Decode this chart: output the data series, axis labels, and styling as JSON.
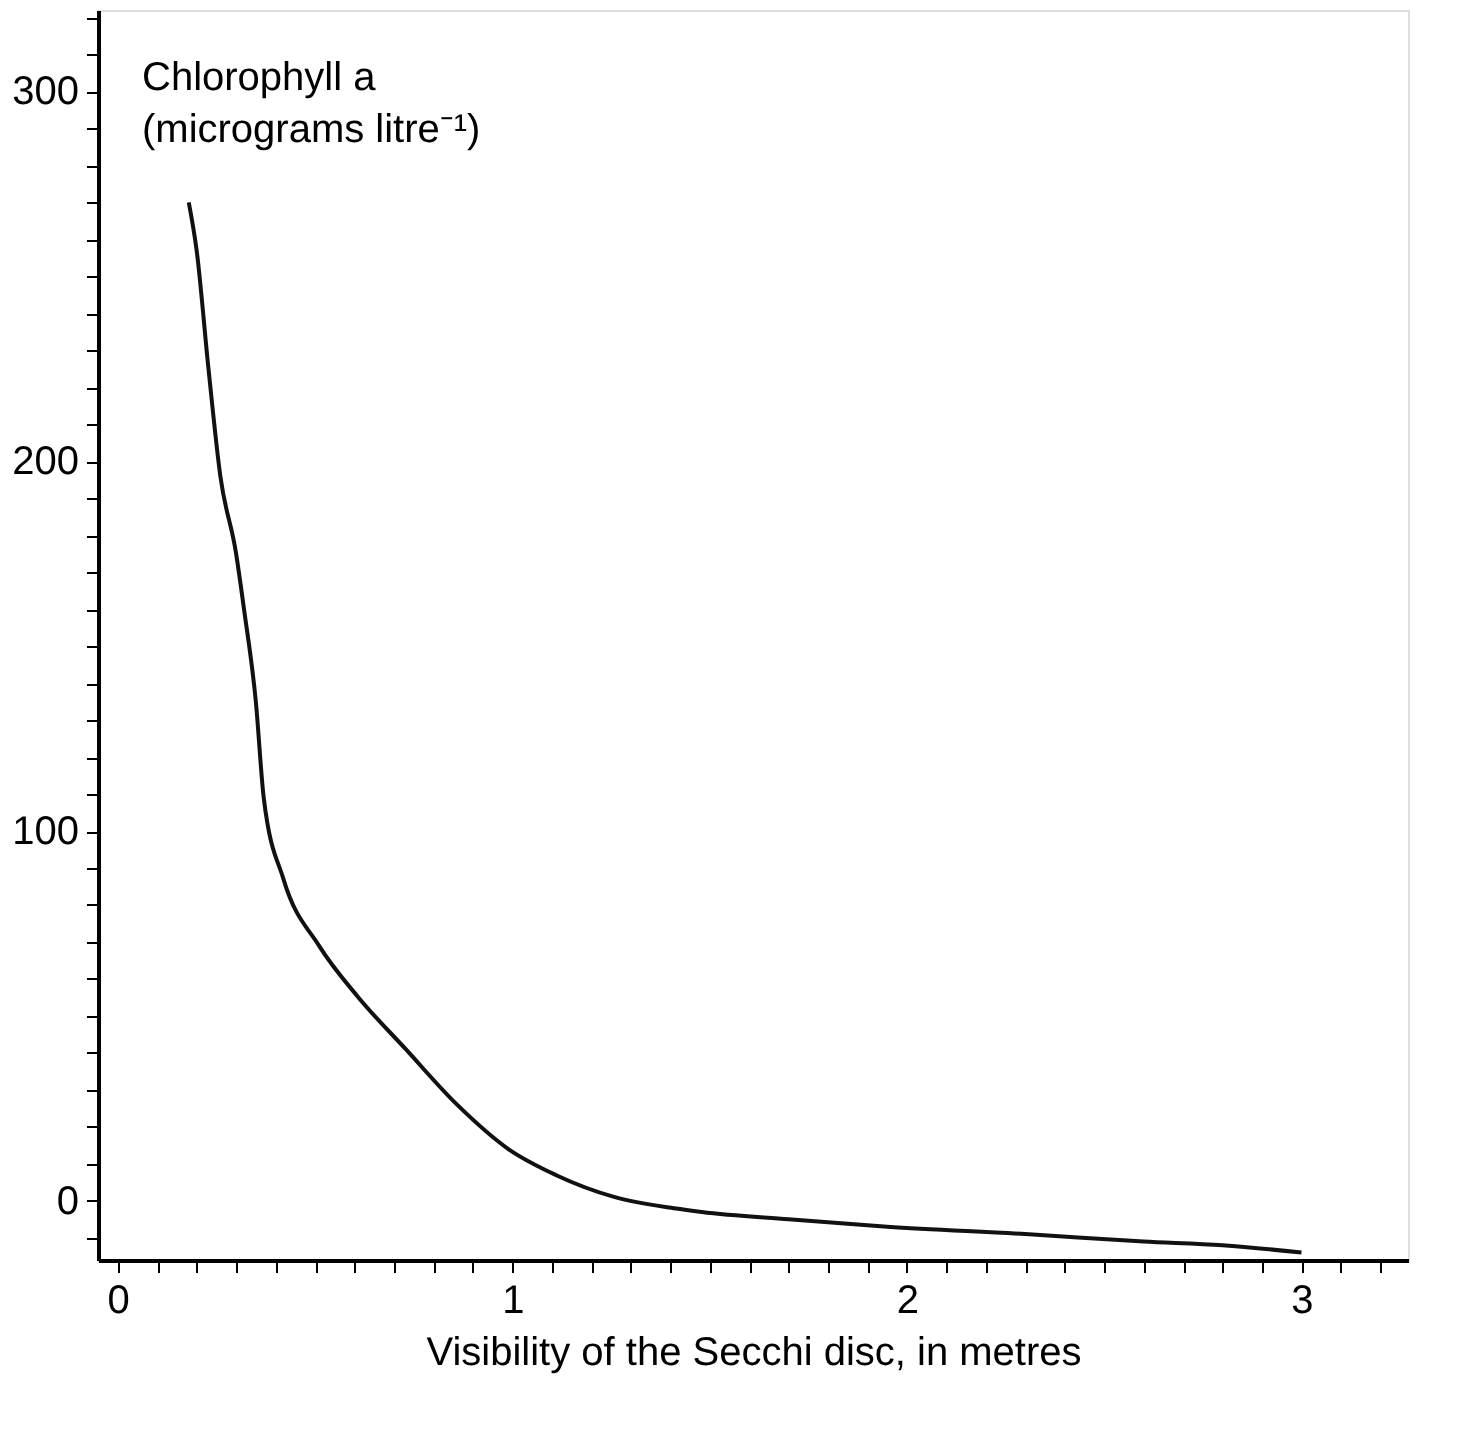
{
  "chart_data": {
    "type": "line",
    "ylabel": "Chlorophyll a (micrograms litre⁻¹)",
    "xlabel": "Visibility of the Secchi disc, in metres",
    "x": [
      0.18,
      0.2,
      0.23,
      0.26,
      0.3,
      0.32,
      0.35,
      0.37,
      0.42,
      0.51,
      0.61,
      0.73,
      0.86,
      0.99,
      1.11,
      1.26,
      1.41,
      1.48,
      1.7,
      1.95,
      2.3,
      2.6,
      2.8,
      3.0
    ],
    "series": [
      {
        "color": "#111111",
        "values": [
          270,
          257,
          225,
          196,
          175,
          160,
          135,
          109,
          87,
          69,
          55,
          41,
          26,
          14,
          7,
          1,
          -2,
          -3,
          -5,
          -7,
          -9,
          -11,
          -12,
          -14
        ]
      }
    ],
    "xlim": [
      -0.05,
      3.27
    ],
    "ylim": [
      -16,
      322
    ],
    "xticks": [
      0,
      {
        "value": 0.1,
        "label": null
      },
      {
        "value": 0.2,
        "label": null
      },
      {
        "value": 0.3,
        "label": null
      },
      {
        "value": 0.4,
        "label": null
      },
      {
        "value": 0.5,
        "label": null
      },
      {
        "value": 0.6,
        "label": null
      },
      {
        "value": 0.7,
        "label": null
      },
      {
        "value": 0.8,
        "label": null
      },
      {
        "value": 0.9,
        "label": null
      },
      1,
      {
        "value": 1.1,
        "label": null
      },
      {
        "value": 1.2,
        "label": null
      },
      {
        "value": 1.3,
        "label": null
      },
      {
        "value": 1.4,
        "label": null
      },
      {
        "value": 1.5,
        "label": null
      },
      {
        "value": 1.6,
        "label": null
      },
      {
        "value": 1.7,
        "label": null
      },
      {
        "value": 1.8,
        "label": null
      },
      {
        "value": 1.9,
        "label": null
      },
      2,
      {
        "value": 2.1,
        "label": null
      },
      {
        "value": 2.2,
        "label": null
      },
      {
        "value": 2.3,
        "label": null
      },
      {
        "value": 2.4,
        "label": null
      },
      {
        "value": 2.5,
        "label": null
      },
      {
        "value": 2.6,
        "label": null
      },
      {
        "value": 2.7,
        "label": null
      },
      {
        "value": 2.8,
        "label": null
      },
      {
        "value": 2.9,
        "label": null
      },
      3,
      {
        "value": 3.1,
        "label": null
      },
      {
        "value": 3.2,
        "label": null
      }
    ],
    "yticks": [
      {
        "value": -10,
        "label": null
      },
      0,
      {
        "value": 10,
        "label": null
      },
      {
        "value": 20,
        "label": null
      },
      {
        "value": 30,
        "label": null
      },
      {
        "value": 40,
        "label": null
      },
      {
        "value": 50,
        "label": null
      },
      {
        "value": 60,
        "label": null
      },
      {
        "value": 70,
        "label": null
      },
      {
        "value": 80,
        "label": null
      },
      {
        "value": 90,
        "label": null
      },
      100,
      {
        "value": 110,
        "label": null
      },
      {
        "value": 120,
        "label": null
      },
      {
        "value": 130,
        "label": null
      },
      {
        "value": 140,
        "label": null
      },
      {
        "value": 150,
        "label": null
      },
      {
        "value": 160,
        "label": null
      },
      {
        "value": 170,
        "label": null
      },
      {
        "value": 180,
        "label": null
      },
      {
        "value": 190,
        "label": null
      },
      200,
      {
        "value": 210,
        "label": null
      },
      {
        "value": 220,
        "label": null
      },
      {
        "value": 230,
        "label": null
      },
      {
        "value": 240,
        "label": null
      },
      {
        "value": 250,
        "label": null
      },
      {
        "value": 260,
        "label": null
      },
      {
        "value": 270,
        "label": null
      },
      {
        "value": 280,
        "label": null
      },
      {
        "value": 290,
        "label": null
      },
      300,
      {
        "value": 310,
        "label": null
      },
      {
        "value": 320,
        "label": null
      }
    ],
    "grid": false,
    "marker": "none",
    "line_style": "solid"
  }
}
